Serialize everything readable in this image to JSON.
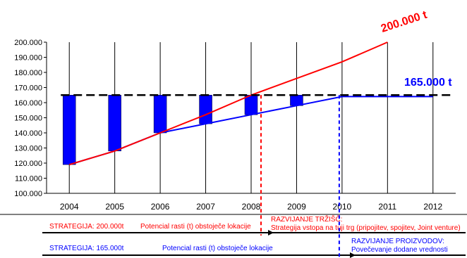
{
  "chart_data": {
    "type": "bar",
    "title": "",
    "xlabel": "",
    "ylabel": "",
    "categories": [
      "2004",
      "2005",
      "2006",
      "2007",
      "2008",
      "2009",
      "2010",
      "2011",
      "2012"
    ],
    "ylim": [
      100000,
      200000
    ],
    "yticks": [
      100000,
      110000,
      120000,
      130000,
      140000,
      150000,
      160000,
      170000,
      180000,
      190000,
      200000
    ],
    "ytick_labels": [
      "100.000",
      "110.000",
      "120.000",
      "130.000",
      "140.000",
      "150.000",
      "160.000",
      "170.000",
      "180.000",
      "190.000",
      "200.000"
    ],
    "grid": "vertical",
    "series": [
      {
        "type": "floating-bar",
        "color": "#0000ff",
        "top": 165000,
        "bottoms": [
          119000,
          128000,
          140000,
          146000,
          152000,
          158000
        ]
      },
      {
        "type": "line",
        "color": "#0000ff",
        "x": [
          "2004",
          "2005",
          "2006",
          "2007",
          "2008",
          "2009",
          "2010",
          "2012"
        ],
        "values": [
          119000,
          128000,
          140000,
          146000,
          152000,
          158000,
          164000,
          164000
        ]
      },
      {
        "type": "line",
        "color": "#ff0000",
        "x": [
          "2004",
          "2005",
          "2006",
          "2007",
          "2008",
          "2009",
          "2010",
          "2011"
        ],
        "values": [
          119000,
          128000,
          140000,
          152000,
          165000,
          176000,
          187000,
          200000
        ]
      },
      {
        "type": "reference-line",
        "style": "dashed",
        "color": "#000000",
        "value": 165000
      }
    ],
    "annotations": {
      "red_target": "200.000 t",
      "blue_target": "165.000 t",
      "red_divider_year": "2008",
      "blue_divider_year": "2010"
    }
  },
  "strategy": {
    "red_label": "STRATEGIJA: 200.000t",
    "red_before": "Potencial rasti (t) obstoječe lokacije",
    "red_after_title": "RAZVIJANJE TRŽIŠČ:",
    "red_after_text": "Strategija vstopa na tuji trg (pripojitev, spojitev, Joint venture)",
    "blue_label": "STRATEGIJA: 165.000t",
    "blue_before": "Potencial rasti (t) obstoječe lokacije",
    "blue_after_title": "RAZVIJANJE PROIZVODOV:",
    "blue_after_text": "Povečevanje dodane vrednosti"
  },
  "colors": {
    "red": "#ff0000",
    "blue": "#0000ff",
    "bar": "#0000ff",
    "grid": "#000000"
  }
}
